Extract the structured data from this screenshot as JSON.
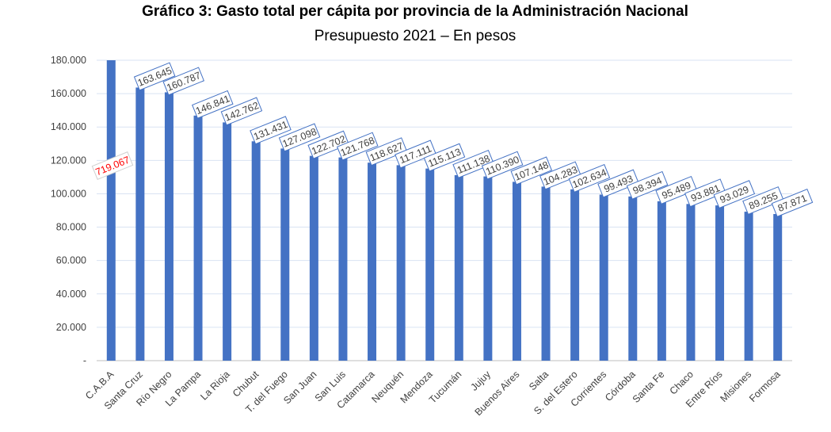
{
  "chart_data": {
    "type": "bar",
    "title": "Gráfico 3: Gasto total per cápita por provincia de la Administración Nacional",
    "subtitle": "Presupuesto 2021 – En pesos",
    "xlabel": "",
    "ylabel": "",
    "ylim": [
      0,
      180000
    ],
    "yticks": [
      0,
      20000,
      40000,
      60000,
      80000,
      100000,
      120000,
      140000,
      160000,
      180000
    ],
    "ytick_labels": [
      "-",
      "20.000",
      "40.000",
      "60.000",
      "80.000",
      "100.000",
      "120.000",
      "140.000",
      "160.000",
      "180.000"
    ],
    "grid": true,
    "colors": {
      "bar": "#4472c4",
      "grid": "#d9e3f3",
      "label_border": "#4472c4",
      "special_label": "#ff0000"
    },
    "categories": [
      "C.A.B.A",
      "Santa Cruz",
      "Río Negro",
      "La Pampa",
      "La Rioja",
      "Chubut",
      "T. del Fuego",
      "San Juan",
      "San Luis",
      "Catamarca",
      "Neuquén",
      "Mendoza",
      "Tucumán",
      "Jujuy",
      "Buenos Aires",
      "Salta",
      "S. del Estero",
      "Corrientes",
      "Córdoba",
      "Santa Fe",
      "Chaco",
      "Entre Ríos",
      "Misiones",
      "Formosa"
    ],
    "values": [
      719067,
      163645,
      160787,
      146841,
      142762,
      131431,
      127098,
      122702,
      121768,
      118627,
      117111,
      115113,
      111138,
      110390,
      107148,
      104283,
      102634,
      99493,
      98394,
      95489,
      93881,
      93029,
      89255,
      87871
    ],
    "value_labels": [
      "719.067",
      "163.645",
      "160.787",
      "146.841",
      "142.762",
      "131.431",
      "127.098",
      "122.702",
      "121.768",
      "118.627",
      "117.111",
      "115.113",
      "111.138",
      "110.390",
      "107.148",
      "104.283",
      "102.634",
      "99.493",
      "98.394",
      "95.489",
      "93.881",
      "93.029",
      "89.255",
      "87.871"
    ],
    "annotations": [
      "C.A.B.A bar exceeds the axis maximum; its value label is shown in red"
    ]
  }
}
